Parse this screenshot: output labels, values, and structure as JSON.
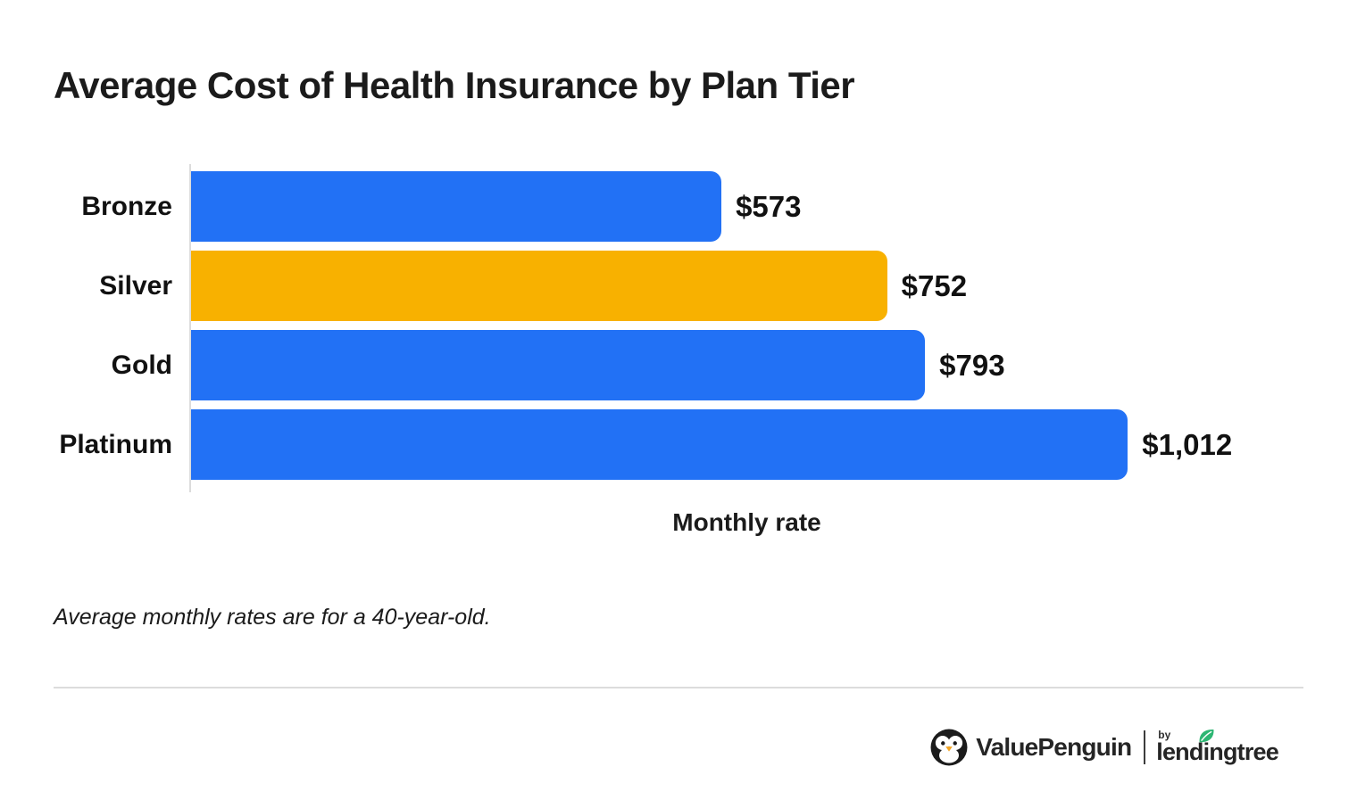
{
  "title": "Average Cost of Health Insurance by Plan Tier",
  "chart_data": {
    "type": "bar",
    "orientation": "horizontal",
    "title": "Average Cost of Health Insurance by Plan Tier",
    "categories": [
      "Bronze",
      "Silver",
      "Gold",
      "Platinum"
    ],
    "values": [
      573,
      752,
      793,
      1012
    ],
    "value_labels": [
      "$573",
      "$752",
      "$793",
      "$1,012"
    ],
    "bar_colors": [
      "#2271F5",
      "#F8B100",
      "#2271F5",
      "#2271F5"
    ],
    "xlabel": "Monthly rate",
    "ylabel": "",
    "xlim": [
      0,
      1250
    ],
    "grid": false,
    "legend": false,
    "annotation": "Average monthly rates are for a 40-year-old."
  },
  "footnote": "Average monthly rates are for a 40-year-old.",
  "footer": {
    "brand": "ValuePenguin",
    "by_label": "by",
    "partner_brand": "lendingtree",
    "icons": [
      "penguin-icon",
      "leaf-icon"
    ]
  },
  "colors": {
    "bar_blue": "#2271F5",
    "bar_highlight_yellow": "#F8B100",
    "text": "#1A1A1A",
    "axis_line": "#DCDCDC",
    "divider": "#DCDCDC",
    "leaf_green": "#2DB673",
    "beak_orange": "#F5A623"
  }
}
